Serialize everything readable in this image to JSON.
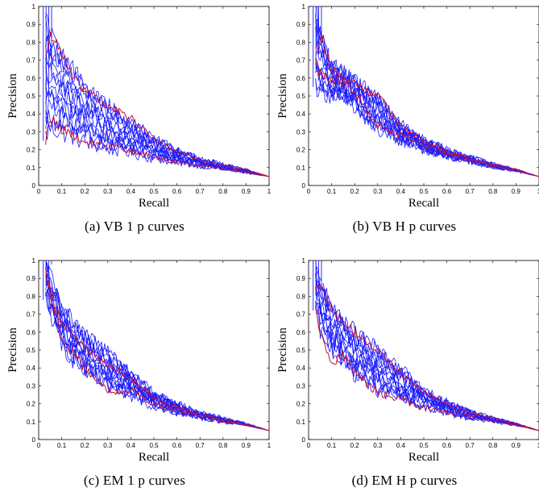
{
  "figure": {
    "captions": [
      "(a) VB 1 p curves",
      "(b) VB H p curves",
      "(c) EM 1 p curves",
      "(d) EM H p curves"
    ]
  },
  "style": {
    "blue_series": "#1a1aff",
    "red_series": "#cc1133"
  },
  "chart_data": [
    {
      "type": "line",
      "title": "",
      "xlabel": "Recall",
      "ylabel": "Precision",
      "xlim": [
        0,
        1
      ],
      "ylim": [
        0,
        1
      ],
      "xticks": [
        "0",
        "0.1",
        "0.2",
        "0.3",
        "0.4",
        "0.5",
        "0.6",
        "0.7",
        "0.8",
        "0.9",
        "1"
      ],
      "yticks": [
        "0",
        "0.1",
        "0.2",
        "0.3",
        "0.4",
        "0.5",
        "0.6",
        "0.7",
        "0.8",
        "0.9",
        "1"
      ],
      "grid": false,
      "series_color_groups": {
        "blue_count": 14,
        "red_count": 2
      },
      "envelope": {
        "x": [
          0.03,
          0.05,
          0.1,
          0.15,
          0.2,
          0.3,
          0.4,
          0.5,
          0.6,
          0.7,
          0.8,
          0.9,
          1.0
        ],
        "upper": [
          1.0,
          0.88,
          0.75,
          0.66,
          0.58,
          0.46,
          0.36,
          0.27,
          0.2,
          0.15,
          0.12,
          0.09,
          0.05
        ],
        "lower": [
          0.25,
          0.3,
          0.28,
          0.26,
          0.23,
          0.2,
          0.18,
          0.15,
          0.13,
          0.11,
          0.09,
          0.07,
          0.05
        ]
      },
      "red_series": [
        {
          "x": [
            0.03,
            0.05,
            0.1,
            0.15,
            0.2,
            0.3,
            0.4,
            0.5,
            0.6,
            0.7,
            0.8,
            0.9,
            1.0
          ],
          "y": [
            0.72,
            0.85,
            0.75,
            0.6,
            0.53,
            0.44,
            0.38,
            0.26,
            0.19,
            0.14,
            0.11,
            0.09,
            0.05
          ]
        },
        {
          "x": [
            0.03,
            0.05,
            0.1,
            0.15,
            0.2,
            0.3,
            0.4,
            0.5,
            0.6,
            0.7,
            0.8,
            0.9,
            1.0
          ],
          "y": [
            0.25,
            0.38,
            0.31,
            0.28,
            0.25,
            0.22,
            0.19,
            0.16,
            0.13,
            0.11,
            0.09,
            0.075,
            0.05
          ]
        }
      ]
    },
    {
      "type": "line",
      "title": "",
      "xlabel": "Recall",
      "ylabel": "Precision",
      "xlim": [
        0,
        1
      ],
      "ylim": [
        0,
        1
      ],
      "xticks": [
        "0",
        "0.1",
        "0.2",
        "0.3",
        "0.4",
        "0.5",
        "0.6",
        "0.7",
        "0.8",
        "0.9",
        "1"
      ],
      "yticks": [
        "0",
        "0.1",
        "0.2",
        "0.3",
        "0.4",
        "0.5",
        "0.6",
        "0.7",
        "0.8",
        "0.9",
        "1"
      ],
      "grid": false,
      "series_color_groups": {
        "blue_count": 14,
        "red_count": 2
      },
      "envelope": {
        "x": [
          0.03,
          0.05,
          0.1,
          0.15,
          0.2,
          0.3,
          0.4,
          0.5,
          0.6,
          0.7,
          0.8,
          0.9,
          1.0
        ],
        "upper": [
          1.0,
          0.88,
          0.68,
          0.64,
          0.6,
          0.5,
          0.34,
          0.26,
          0.2,
          0.16,
          0.12,
          0.09,
          0.05
        ],
        "lower": [
          0.55,
          0.52,
          0.5,
          0.48,
          0.42,
          0.3,
          0.25,
          0.2,
          0.16,
          0.13,
          0.1,
          0.08,
          0.05
        ]
      },
      "red_series": [
        {
          "x": [
            0.03,
            0.05,
            0.1,
            0.15,
            0.2,
            0.3,
            0.4,
            0.5,
            0.6,
            0.7,
            0.8,
            0.9,
            1.0
          ],
          "y": [
            0.7,
            0.85,
            0.64,
            0.6,
            0.57,
            0.5,
            0.33,
            0.25,
            0.19,
            0.15,
            0.12,
            0.09,
            0.05
          ]
        },
        {
          "x": [
            0.03,
            0.05,
            0.1,
            0.15,
            0.2,
            0.3,
            0.4,
            0.5,
            0.6,
            0.7,
            0.8,
            0.9,
            1.0
          ],
          "y": [
            0.68,
            0.62,
            0.6,
            0.57,
            0.53,
            0.33,
            0.28,
            0.22,
            0.18,
            0.14,
            0.11,
            0.085,
            0.05
          ]
        }
      ]
    },
    {
      "type": "line",
      "title": "",
      "xlabel": "Recall",
      "ylabel": "Precision",
      "xlim": [
        0,
        1
      ],
      "ylim": [
        0,
        1
      ],
      "xticks": [
        "0",
        "0.1",
        "0.2",
        "0.3",
        "0.4",
        "0.5",
        "0.6",
        "0.7",
        "0.8",
        "0.9",
        "1"
      ],
      "yticks": [
        "0",
        "0.1",
        "0.2",
        "0.3",
        "0.4",
        "0.5",
        "0.6",
        "0.7",
        "0.8",
        "0.9",
        "1"
      ],
      "grid": false,
      "series_color_groups": {
        "blue_count": 14,
        "red_count": 2
      },
      "envelope": {
        "x": [
          0.03,
          0.05,
          0.1,
          0.15,
          0.2,
          0.3,
          0.4,
          0.5,
          0.6,
          0.7,
          0.8,
          0.9,
          1.0
        ],
        "upper": [
          1.0,
          0.92,
          0.75,
          0.66,
          0.6,
          0.5,
          0.38,
          0.26,
          0.2,
          0.15,
          0.12,
          0.09,
          0.05
        ],
        "lower": [
          0.78,
          0.7,
          0.52,
          0.44,
          0.38,
          0.28,
          0.24,
          0.19,
          0.15,
          0.12,
          0.1,
          0.08,
          0.05
        ]
      },
      "red_series": [
        {
          "x": [
            0.03,
            0.05,
            0.1,
            0.15,
            0.2,
            0.3,
            0.4,
            0.5,
            0.6,
            0.7,
            0.8,
            0.9,
            1.0
          ],
          "y": [
            0.9,
            0.85,
            0.56,
            0.48,
            0.4,
            0.27,
            0.28,
            0.2,
            0.16,
            0.13,
            0.1,
            0.08,
            0.05
          ]
        },
        {
          "x": [
            0.03,
            0.05,
            0.1,
            0.15,
            0.2,
            0.3,
            0.4,
            0.5,
            0.6,
            0.7,
            0.8,
            0.9,
            1.0
          ],
          "y": [
            0.95,
            0.8,
            0.66,
            0.58,
            0.52,
            0.42,
            0.34,
            0.23,
            0.18,
            0.14,
            0.11,
            0.085,
            0.05
          ]
        }
      ]
    },
    {
      "type": "line",
      "title": "",
      "xlabel": "Recall",
      "ylabel": "Precision",
      "xlim": [
        0,
        1
      ],
      "ylim": [
        0,
        1
      ],
      "xticks": [
        "0",
        "0.1",
        "0.2",
        "0.3",
        "0.4",
        "0.5",
        "0.6",
        "0.7",
        "0.8",
        "0.9",
        "1"
      ],
      "yticks": [
        "0",
        "0.1",
        "0.2",
        "0.3",
        "0.4",
        "0.5",
        "0.6",
        "0.7",
        "0.8",
        "0.9",
        "1"
      ],
      "grid": false,
      "series_color_groups": {
        "blue_count": 14,
        "red_count": 2
      },
      "envelope": {
        "x": [
          0.03,
          0.05,
          0.1,
          0.15,
          0.2,
          0.3,
          0.4,
          0.5,
          0.6,
          0.7,
          0.8,
          0.9,
          1.0
        ],
        "upper": [
          1.0,
          0.9,
          0.75,
          0.68,
          0.62,
          0.52,
          0.4,
          0.28,
          0.21,
          0.16,
          0.12,
          0.09,
          0.05
        ],
        "lower": [
          0.72,
          0.6,
          0.5,
          0.42,
          0.36,
          0.27,
          0.22,
          0.18,
          0.15,
          0.12,
          0.1,
          0.08,
          0.05
        ]
      },
      "red_series": [
        {
          "x": [
            0.03,
            0.05,
            0.1,
            0.15,
            0.2,
            0.3,
            0.4,
            0.5,
            0.6,
            0.7,
            0.8,
            0.9,
            1.0
          ],
          "y": [
            0.82,
            0.88,
            0.72,
            0.65,
            0.6,
            0.5,
            0.37,
            0.26,
            0.2,
            0.15,
            0.12,
            0.09,
            0.05
          ]
        },
        {
          "x": [
            0.03,
            0.05,
            0.1,
            0.15,
            0.2,
            0.3,
            0.4,
            0.5,
            0.6,
            0.7,
            0.8,
            0.9,
            1.0
          ],
          "y": [
            0.75,
            0.6,
            0.42,
            0.48,
            0.38,
            0.26,
            0.22,
            0.18,
            0.15,
            0.13,
            0.1,
            0.08,
            0.05
          ]
        }
      ]
    }
  ]
}
